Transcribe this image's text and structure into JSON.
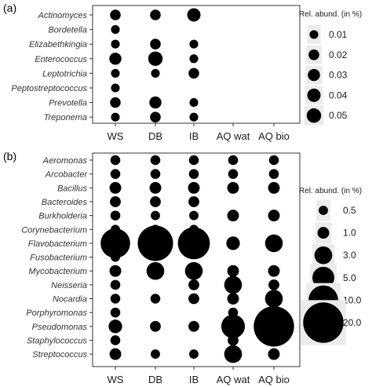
{
  "chart_data": [
    {
      "type": "scatter",
      "panel": "(a)",
      "categories_x": [
        "WS",
        "DB",
        "IB",
        "AQ wat",
        "AQ bio"
      ],
      "categories_y": [
        "Actinomyces",
        "Bordetella",
        "Elizabethkingia",
        "Enterococcus",
        "Leptotrichia",
        "Peptostreptococcus",
        "Prevotella",
        "Treponema"
      ],
      "size_label": "Rel. abund. (in %)",
      "legend": [
        {
          "label": "0.01",
          "value": 0.01
        },
        {
          "label": "0.02",
          "value": 0.02
        },
        {
          "label": "0.03",
          "value": 0.03
        },
        {
          "label": "0.04",
          "value": 0.04
        },
        {
          "label": "0.05",
          "value": 0.05
        }
      ],
      "points": [
        {
          "x": "WS",
          "y": "Actinomyces",
          "value": 0.02
        },
        {
          "x": "DB",
          "y": "Actinomyces",
          "value": 0.02
        },
        {
          "x": "IB",
          "y": "Actinomyces",
          "value": 0.04
        },
        {
          "x": "WS",
          "y": "Bordetella",
          "value": 0.01
        },
        {
          "x": "WS",
          "y": "Elizabethkingia",
          "value": 0.01
        },
        {
          "x": "DB",
          "y": "Elizabethkingia",
          "value": 0.02
        },
        {
          "x": "IB",
          "y": "Elizabethkingia",
          "value": 0.01
        },
        {
          "x": "WS",
          "y": "Enterococcus",
          "value": 0.03
        },
        {
          "x": "DB",
          "y": "Enterococcus",
          "value": 0.05
        },
        {
          "x": "IB",
          "y": "Enterococcus",
          "value": 0.01
        },
        {
          "x": "WS",
          "y": "Leptotrichia",
          "value": 0.01
        },
        {
          "x": "DB",
          "y": "Leptotrichia",
          "value": 0.01
        },
        {
          "x": "IB",
          "y": "Leptotrichia",
          "value": 0.02
        },
        {
          "x": "WS",
          "y": "Peptostreptococcus",
          "value": 0.01
        },
        {
          "x": "WS",
          "y": "Prevotella",
          "value": 0.02
        },
        {
          "x": "DB",
          "y": "Prevotella",
          "value": 0.03
        },
        {
          "x": "IB",
          "y": "Prevotella",
          "value": 0.01
        },
        {
          "x": "WS",
          "y": "Treponema",
          "value": 0.01
        },
        {
          "x": "DB",
          "y": "Treponema",
          "value": 0.02
        },
        {
          "x": "IB",
          "y": "Treponema",
          "value": 0.01
        }
      ]
    },
    {
      "type": "scatter",
      "panel": "(b)",
      "categories_x": [
        "WS",
        "DB",
        "IB",
        "AQ wat",
        "AQ bio"
      ],
      "categories_y": [
        "Aeromonas",
        "Arcobacter",
        "Bacillus",
        "Bacteroides",
        "Burkholderia",
        "Corynebacterium",
        "Flavobacterium",
        "Fusobacterium",
        "Mycobacterium",
        "Neisseria",
        "Nocardia",
        "Porphyromonas",
        "Pseudomonas",
        "Staphylococcus",
        "Streptococcus"
      ],
      "size_label": "Rel. abund. (in %)",
      "legend": [
        {
          "label": "0.5",
          "value": 0.5
        },
        {
          "label": "1.0",
          "value": 1.0
        },
        {
          "label": "3.0",
          "value": 3.0
        },
        {
          "label": "5.0",
          "value": 5.0
        },
        {
          "label": "10.0",
          "value": 10.0
        },
        {
          "label": "20.0",
          "value": 20.0
        }
      ],
      "points": [
        {
          "x": "WS",
          "y": "Aeromonas",
          "value": 0.6
        },
        {
          "x": "DB",
          "y": "Aeromonas",
          "value": 0.6
        },
        {
          "x": "IB",
          "y": "Aeromonas",
          "value": 0.6
        },
        {
          "x": "AQ wat",
          "y": "Aeromonas",
          "value": 0.6
        },
        {
          "x": "AQ bio",
          "y": "Aeromonas",
          "value": 0.6
        },
        {
          "x": "WS",
          "y": "Arcobacter",
          "value": 0.6
        },
        {
          "x": "DB",
          "y": "Arcobacter",
          "value": 0.6
        },
        {
          "x": "IB",
          "y": "Arcobacter",
          "value": 0.6
        },
        {
          "x": "AQ wat",
          "y": "Arcobacter",
          "value": 0.6
        },
        {
          "x": "AQ bio",
          "y": "Arcobacter",
          "value": 0.6
        },
        {
          "x": "WS",
          "y": "Bacillus",
          "value": 1.0
        },
        {
          "x": "DB",
          "y": "Bacillus",
          "value": 1.0
        },
        {
          "x": "IB",
          "y": "Bacillus",
          "value": 1.0
        },
        {
          "x": "AQ wat",
          "y": "Bacillus",
          "value": 1.0
        },
        {
          "x": "AQ bio",
          "y": "Bacillus",
          "value": 1.0
        },
        {
          "x": "WS",
          "y": "Bacteroides",
          "value": 0.8
        },
        {
          "x": "DB",
          "y": "Bacteroides",
          "value": 0.8
        },
        {
          "x": "IB",
          "y": "Bacteroides",
          "value": 0.8
        },
        {
          "x": "WS",
          "y": "Burkholderia",
          "value": 0.6
        },
        {
          "x": "DB",
          "y": "Burkholderia",
          "value": 0.5
        },
        {
          "x": "IB",
          "y": "Burkholderia",
          "value": 0.5
        },
        {
          "x": "AQ wat",
          "y": "Burkholderia",
          "value": 1.0
        },
        {
          "x": "AQ bio",
          "y": "Burkholderia",
          "value": 1.0
        },
        {
          "x": "WS",
          "y": "Corynebacterium",
          "value": 0.5
        },
        {
          "x": "DB",
          "y": "Corynebacterium",
          "value": 0.5
        },
        {
          "x": "IB",
          "y": "Corynebacterium",
          "value": 0.5
        },
        {
          "x": "WS",
          "y": "Flavobacterium",
          "value": 10.0
        },
        {
          "x": "DB",
          "y": "Flavobacterium",
          "value": 15.0
        },
        {
          "x": "IB",
          "y": "Flavobacterium",
          "value": 12.0
        },
        {
          "x": "AQ wat",
          "y": "Flavobacterium",
          "value": 1.5
        },
        {
          "x": "AQ bio",
          "y": "Flavobacterium",
          "value": 3.0
        },
        {
          "x": "WS",
          "y": "Fusobacterium",
          "value": 0.5
        },
        {
          "x": "WS",
          "y": "Mycobacterium",
          "value": 1.0
        },
        {
          "x": "DB",
          "y": "Mycobacterium",
          "value": 3.0
        },
        {
          "x": "IB",
          "y": "Mycobacterium",
          "value": 3.0
        },
        {
          "x": "AQ wat",
          "y": "Mycobacterium",
          "value": 1.0
        },
        {
          "x": "AQ bio",
          "y": "Mycobacterium",
          "value": 1.0
        },
        {
          "x": "WS",
          "y": "Neisseria",
          "value": 0.6
        },
        {
          "x": "IB",
          "y": "Neisseria",
          "value": 0.8
        },
        {
          "x": "AQ wat",
          "y": "Neisseria",
          "value": 3.0
        },
        {
          "x": "AQ bio",
          "y": "Neisseria",
          "value": 0.8
        },
        {
          "x": "WS",
          "y": "Nocardia",
          "value": 0.6
        },
        {
          "x": "DB",
          "y": "Nocardia",
          "value": 0.6
        },
        {
          "x": "IB",
          "y": "Nocardia",
          "value": 0.8
        },
        {
          "x": "AQ wat",
          "y": "Nocardia",
          "value": 1.0
        },
        {
          "x": "AQ bio",
          "y": "Nocardia",
          "value": 3.0
        },
        {
          "x": "WS",
          "y": "Porphyromonas",
          "value": 0.6
        },
        {
          "x": "AQ wat",
          "y": "Porphyromonas",
          "value": 0.6
        },
        {
          "x": "WS",
          "y": "Pseudomonas",
          "value": 1.5
        },
        {
          "x": "DB",
          "y": "Pseudomonas",
          "value": 0.8
        },
        {
          "x": "IB",
          "y": "Pseudomonas",
          "value": 0.8
        },
        {
          "x": "AQ wat",
          "y": "Pseudomonas",
          "value": 6.0
        },
        {
          "x": "AQ bio",
          "y": "Pseudomonas",
          "value": 20.0
        },
        {
          "x": "WS",
          "y": "Staphylococcus",
          "value": 0.6
        },
        {
          "x": "AQ wat",
          "y": "Staphylococcus",
          "value": 0.8
        },
        {
          "x": "AQ bio",
          "y": "Staphylococcus",
          "value": 0.5
        },
        {
          "x": "WS",
          "y": "Streptococcus",
          "value": 1.0
        },
        {
          "x": "DB",
          "y": "Streptococcus",
          "value": 0.5
        },
        {
          "x": "IB",
          "y": "Streptococcus",
          "value": 0.5
        },
        {
          "x": "AQ wat",
          "y": "Streptococcus",
          "value": 3.0
        },
        {
          "x": "AQ bio",
          "y": "Streptococcus",
          "value": 1.0
        }
      ]
    }
  ]
}
